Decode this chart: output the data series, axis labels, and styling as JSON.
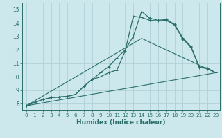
{
  "title": "",
  "xlabel": "Humidex (Indice chaleur)",
  "ylabel": "",
  "bg_color": "#cde8ec",
  "grid_color": "#b0d0d8",
  "line_color": "#2a6e6a",
  "xlim": [
    -0.5,
    23.5
  ],
  "ylim": [
    7.5,
    15.5
  ],
  "xticks": [
    0,
    1,
    2,
    3,
    4,
    5,
    6,
    7,
    8,
    9,
    10,
    11,
    12,
    13,
    14,
    15,
    16,
    17,
    18,
    19,
    20,
    21,
    22,
    23
  ],
  "yticks": [
    8,
    9,
    10,
    11,
    12,
    13,
    14,
    15
  ],
  "series_top": {
    "x": [
      0,
      1,
      2,
      3,
      4,
      5,
      6,
      7,
      8,
      9,
      10,
      11,
      12,
      13,
      14,
      15,
      16,
      17,
      18,
      19,
      20,
      21,
      22,
      23
    ],
    "y": [
      7.85,
      8.1,
      8.3,
      8.45,
      8.5,
      8.55,
      8.7,
      9.3,
      9.8,
      10.3,
      10.75,
      11.4,
      12.0,
      13.0,
      14.85,
      14.35,
      14.2,
      14.25,
      13.9,
      12.9,
      12.25,
      10.75,
      10.65,
      10.3
    ]
  },
  "series_mid": {
    "x": [
      0,
      1,
      2,
      3,
      4,
      5,
      6,
      7,
      8,
      9,
      10,
      11,
      12,
      13,
      14,
      15,
      16,
      17,
      18,
      19,
      20,
      21,
      22,
      23
    ],
    "y": [
      7.85,
      8.1,
      8.3,
      8.45,
      8.5,
      8.55,
      8.7,
      9.3,
      9.8,
      10.0,
      10.3,
      10.5,
      11.9,
      14.5,
      14.4,
      14.2,
      14.15,
      14.2,
      13.85,
      12.8,
      12.2,
      10.7,
      10.6,
      10.3
    ]
  },
  "series_diag1": {
    "x": [
      0,
      14,
      23
    ],
    "y": [
      7.85,
      12.85,
      10.3
    ]
  },
  "series_diag2": {
    "x": [
      0,
      23
    ],
    "y": [
      7.85,
      10.3
    ]
  }
}
